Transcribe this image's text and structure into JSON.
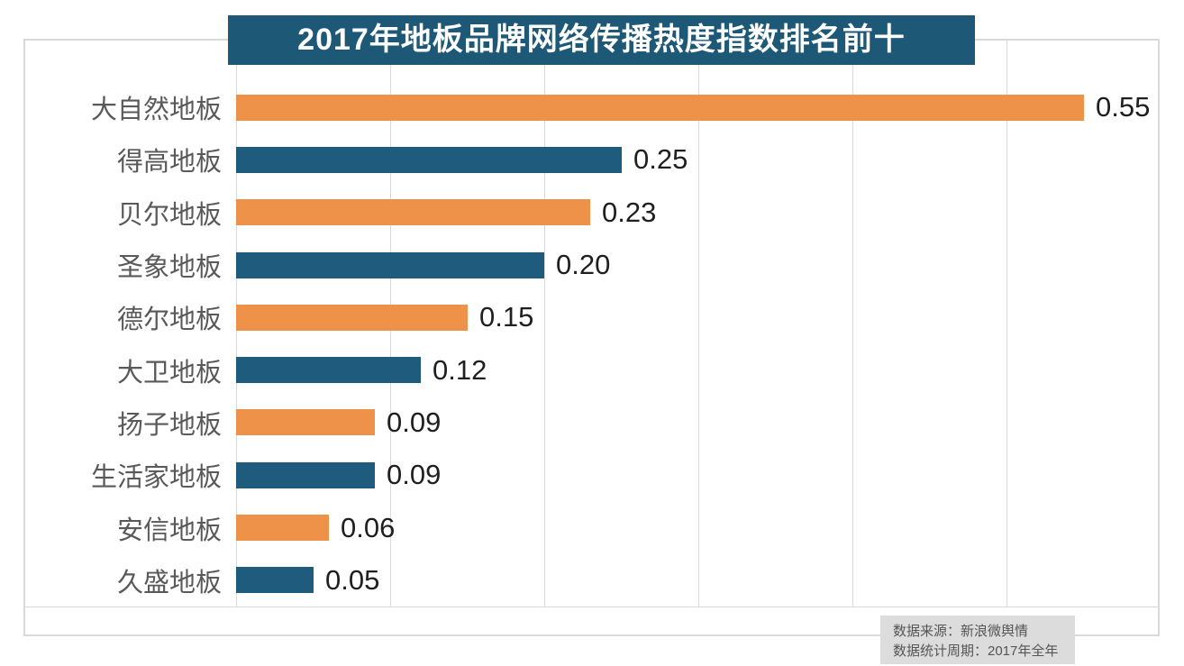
{
  "title": "2017年地板品牌网络传播热度指数排名前十",
  "chart_data": {
    "type": "bar",
    "orientation": "horizontal",
    "title": "2017年地板品牌网络传播热度指数排名前十",
    "categories": [
      "大自然地板",
      "得高地板",
      "贝尔地板",
      "圣象地板",
      "德尔地板",
      "大卫地板",
      "扬子地板",
      "生活家地板",
      "安信地板",
      "久盛地板"
    ],
    "values": [
      0.55,
      0.25,
      0.23,
      0.2,
      0.15,
      0.12,
      0.09,
      0.09,
      0.06,
      0.05
    ],
    "value_labels": [
      "0.55",
      "0.25",
      "0.23",
      "0.20",
      "0.15",
      "0.12",
      "0.09",
      "0.09",
      "0.06",
      "0.05"
    ],
    "xlim": [
      0,
      0.6
    ],
    "gridline_interval": 0.1,
    "grid": true,
    "legend": "none",
    "bar_colors_alternating": [
      "#EF9249",
      "#1E5B7D"
    ]
  },
  "source_note": {
    "line1": "数据来源：新浪微舆情",
    "line2": "数据统计周期：2017年全年"
  },
  "colors": {
    "title_bg": "#1D5877",
    "title_text": "#FFFFFF",
    "orange": "#EF9249",
    "blue": "#1E5B7D",
    "grid": "#D9D9D9",
    "frame_border": "#D9D9D9",
    "category_text": "#595959",
    "value_text": "#1F1F1F",
    "note_bg": "#DCDCDC",
    "note_text": "#555555"
  }
}
